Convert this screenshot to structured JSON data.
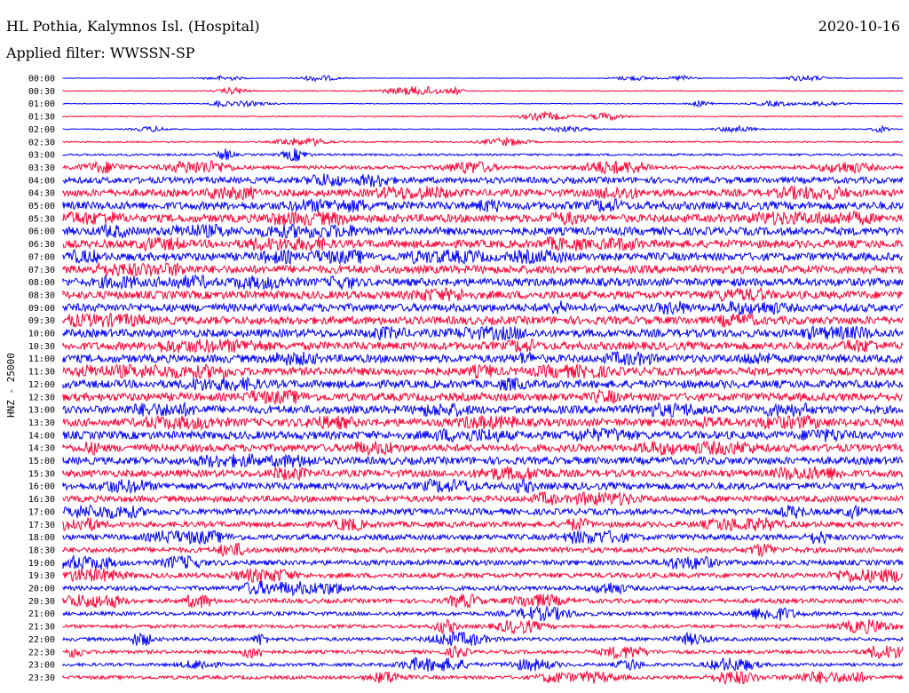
{
  "header": {
    "station": "HL Pothia, Kalymnos Isl. (Hospital)",
    "date": "2020-10-16",
    "filter": "Applied filter: WWSSN-SP",
    "channel_label": "HNZ - 25000"
  },
  "chart_data": {
    "type": "line",
    "title": "HL Pothia, Kalymnos Isl. (Hospital)",
    "ylabel": "HNZ - 25000",
    "colors": [
      "#0000ff",
      "#ff0033"
    ],
    "row_labels": [
      "00:00",
      "00:30",
      "01:00",
      "01:30",
      "02:00",
      "02:30",
      "03:00",
      "03:30",
      "04:00",
      "04:30",
      "05:00",
      "05:30",
      "06:00",
      "06:30",
      "07:00",
      "07:30",
      "08:00",
      "08:30",
      "09:00",
      "09:30",
      "10:00",
      "10:30",
      "11:00",
      "11:30",
      "12:00",
      "12:30",
      "13:00",
      "13:30",
      "14:00",
      "14:30",
      "15:00",
      "15:30",
      "16:00",
      "16:30",
      "17:00",
      "17:30",
      "18:00",
      "18:30",
      "19:00",
      "19:30",
      "20:00",
      "20:30",
      "21:00",
      "21:30",
      "22:00",
      "22:30",
      "23:00",
      "23:30"
    ],
    "noise_level": [
      0.3,
      0.5,
      0.4,
      0.6,
      0.5,
      0.8,
      1.2,
      2.0,
      3.5,
      4.0,
      4.5,
      4.5,
      4.5,
      4.5,
      4.5,
      4.5,
      4.5,
      4.5,
      4.5,
      4.5,
      4.5,
      4.5,
      4.5,
      4.5,
      4.5,
      4.5,
      4.5,
      4.5,
      4.5,
      4.2,
      4.2,
      4.0,
      4.0,
      3.5,
      3.5,
      3.2,
      3.2,
      3.0,
      3.0,
      2.8,
      2.5,
      2.5,
      2.2,
      2.0,
      2.0,
      2.0,
      1.8,
      2.0
    ]
  }
}
